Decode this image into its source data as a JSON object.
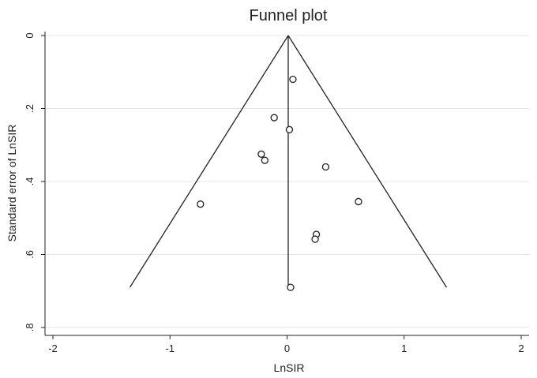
{
  "chart_data": {
    "type": "scatter",
    "title": "Funnel plot",
    "xlabel": "LnSIR",
    "ylabel": "Standard error of LnSIR",
    "xlim": [
      -2,
      2
    ],
    "ylim": [
      0,
      0.8
    ],
    "y_reversed": true,
    "x_ticks": [
      -2,
      -1,
      0,
      1,
      2
    ],
    "x_tick_labels": [
      "-2",
      "-1",
      "0",
      "1",
      "2"
    ],
    "y_ticks": [
      0,
      0.2,
      0.4,
      0.6,
      0.8
    ],
    "y_tick_labels": [
      "0",
      ".2",
      ".4",
      ".6",
      ".8"
    ],
    "grid": true,
    "points": [
      {
        "x": 0.05,
        "y": 0.12
      },
      {
        "x": -0.11,
        "y": 0.225
      },
      {
        "x": 0.02,
        "y": 0.258
      },
      {
        "x": -0.22,
        "y": 0.325
      },
      {
        "x": -0.19,
        "y": 0.342
      },
      {
        "x": 0.33,
        "y": 0.36
      },
      {
        "x": -0.74,
        "y": 0.462
      },
      {
        "x": 0.61,
        "y": 0.455
      },
      {
        "x": 0.25,
        "y": 0.545
      },
      {
        "x": 0.24,
        "y": 0.558
      },
      {
        "x": 0.03,
        "y": 0.69
      }
    ],
    "funnel": {
      "center_x": 0.01,
      "apex_se": 0,
      "max_se": 0.69,
      "ci_multiplier": 1.96
    }
  }
}
